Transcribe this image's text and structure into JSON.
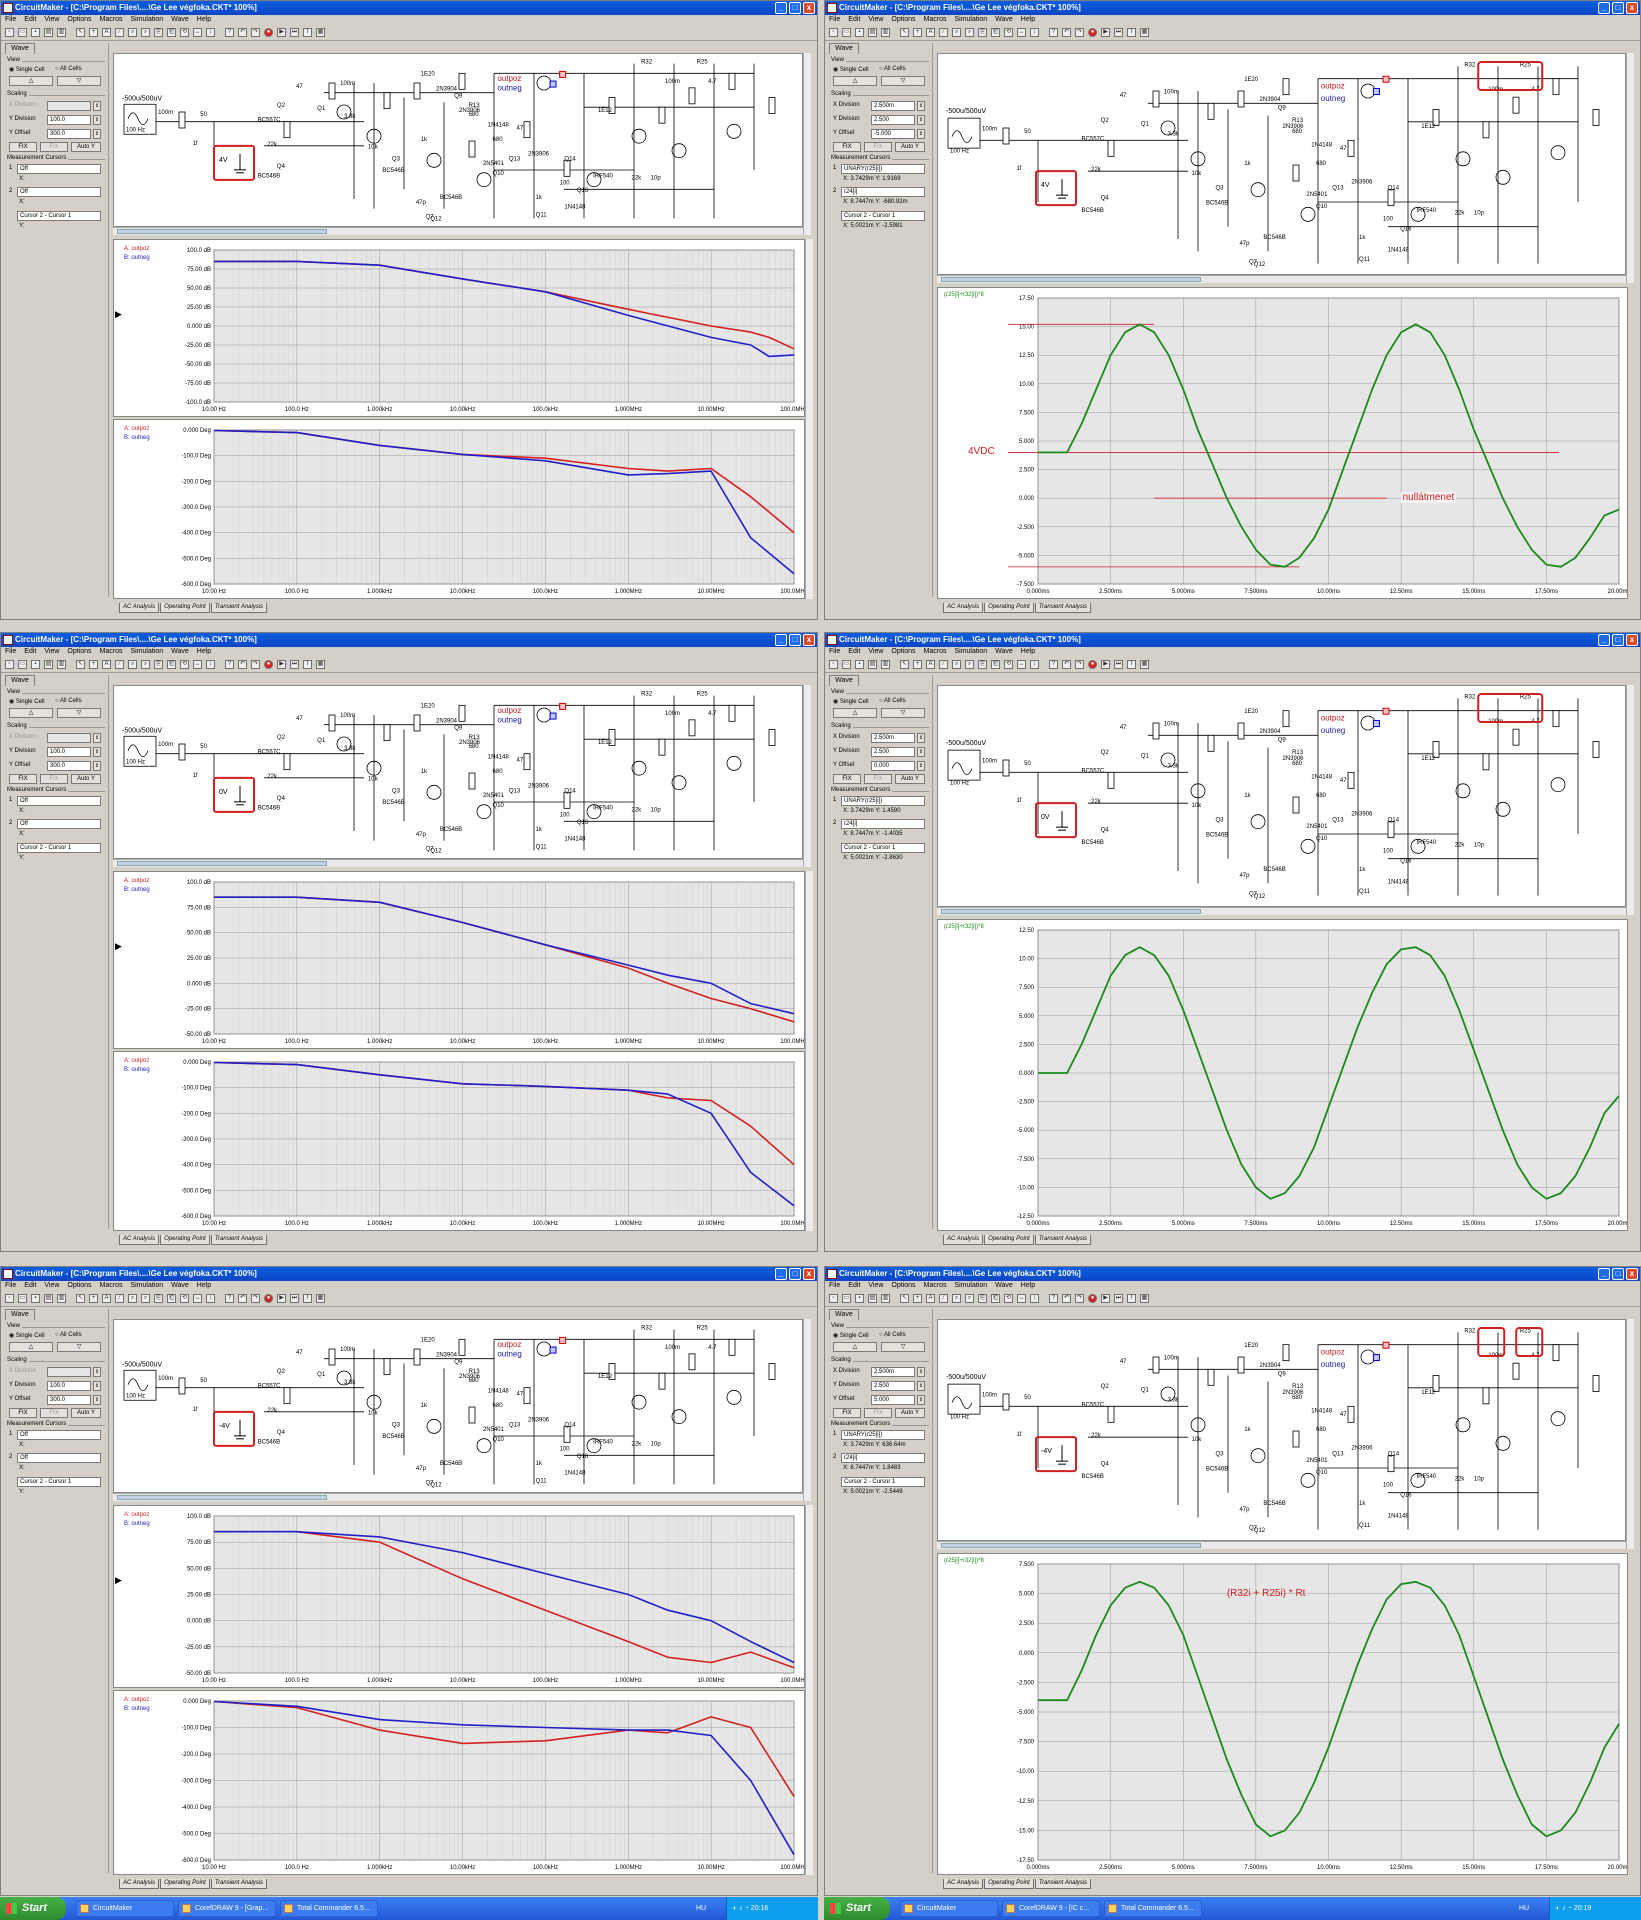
{
  "common": {
    "title": "CircuitMaker - [C:\\Program Files\\....\\Ge Lee végfoka.CKT* 100%]",
    "menu": [
      "File",
      "Edit",
      "View",
      "Options",
      "Macros",
      "Simulation",
      "Wave",
      "Help"
    ],
    "side_tab": "Wave",
    "view_label": "View",
    "single_cell": "Single Cell",
    "all_cells": "All Cells",
    "scaling_label": "Scaling",
    "x_division_label": "X Division",
    "y_division_label": "Y Division",
    "y_offset_label": "Y Offset",
    "fix_label": "FIX",
    "fix2_label": "FIX",
    "auto_y_label": "Auto Y",
    "measurement_label": "Measurement Cursors",
    "x_label": "X:",
    "y_label": "Y:",
    "cursor_diff": "Cursor 2 - Cursor 1",
    "bottom_tabs": [
      "AC Analysis",
      "Operating Point",
      "Transient Analysis"
    ],
    "source_label": "-500u/500uV",
    "source_freq": "100 Hz",
    "schematic_labels": [
      "100m",
      "50",
      "1f",
      "22k",
      "Q2",
      "47",
      "Q1",
      "BC557C",
      "Q4",
      "BC546B",
      "3.3k",
      "100m",
      "10k",
      "Q3",
      "BC546B",
      "47p",
      "1k",
      "1E20",
      "2N3904",
      "Q7",
      "BC546B",
      "Q12",
      "1N4148",
      "680",
      "2N5401",
      "Q10",
      "47",
      "Q13",
      "2N3906",
      "Q14",
      "1k",
      "Q11",
      "1N4148",
      "100",
      "Q16",
      "IRF540",
      "22k",
      "10p",
      "1E12",
      "R32",
      "R25",
      "100m",
      "4.7",
      "Q9",
      "2N3906",
      "R13",
      "680"
    ],
    "outpoz": "outpoz",
    "outneg": "outneg"
  },
  "ac_plots": {
    "mag_yticks": [
      "100.0 dB",
      "75.00 dB",
      "50.00 dB",
      "25.00 dB",
      "0.000 dB",
      "-25.00 dB",
      "-50.00 dB",
      "-75.00 dB",
      "-100.0 dB"
    ],
    "mag_yticks_short": [
      "100.0 dB",
      "75.00 dB",
      "50.00 dB",
      "25.00 dB",
      "0.000 dB",
      "-25.00 dB",
      "-50.00 dB"
    ],
    "phase_yticks": [
      "0.000 Deg",
      "-100.0 Deg",
      "-200.0 Deg",
      "-300.0 Deg",
      "-400.0 Deg",
      "-500.0 Deg",
      "-600.0 Deg"
    ],
    "xticks": [
      "10.00 Hz",
      "100.0 Hz",
      "1.000kHz",
      "10.00kHz",
      "100.0kHz",
      "1.000MHz",
      "10.00MHz",
      "100.0MHz"
    ],
    "legend_a": "A: outpoz",
    "legend_b": "B: outneg",
    "colors": {
      "a": "#d42020",
      "b": "#2020c8"
    }
  },
  "panels": [
    {
      "id": "p1",
      "ground_label": "4V",
      "x_division": "",
      "y_division": "100.0",
      "y_offset": "300.0",
      "cursor1": "Off",
      "cursor2": "Off"
    },
    {
      "id": "p3",
      "ground_label": "0V",
      "x_division": "",
      "y_division": "100.0",
      "y_offset": "300.0",
      "cursor1": "Off",
      "cursor2": "Off"
    },
    {
      "id": "p5",
      "ground_label": "-4V",
      "x_division": "",
      "y_division": "100.0",
      "y_offset": "300.0",
      "cursor1": "Off",
      "cursor2": "Off"
    },
    {
      "id": "p2",
      "ground_label": "4V",
      "x_division": "2.500m",
      "y_division": "2.500",
      "y_offset": "-5.000",
      "cursor1": "UNARY(r25[i])",
      "cursor1_xy": "X: 3.7429m  Y: 1.9169",
      "cursor2": "r24[i]",
      "cursor2_xy": "X: 8.7447m  Y: -680.92m",
      "diff_xy": "X: 5.0021m  Y: -2.5981",
      "trace_label": "(r25[i]+r32[i])*8",
      "yticks": [
        "17.50",
        "15.00",
        "12.50",
        "10.00",
        "7.500",
        "5.000",
        "2.500",
        "0.000",
        "-2.500",
        "-5.000",
        "-7.500"
      ],
      "xticks": [
        "0.000ms",
        "2.500ms",
        "5.000ms",
        "7.500ms",
        "10.00ms",
        "12.50ms",
        "15.00ms",
        "17.50ms",
        "20.00ms"
      ],
      "annot1": "4VDC",
      "annot2": "nullátmenet"
    },
    {
      "id": "p4",
      "ground_label": "0V",
      "x_division": "2.500m",
      "y_division": "2.500",
      "y_offset": "0.000",
      "cursor1": "UNARY(r25[i])",
      "cursor1_xy": "X: 3.7429m  Y: 1.4590",
      "cursor2": "r24[i]",
      "cursor2_xy": "X: 8.7447m  Y: -1.4035",
      "diff_xy": "X: 5.0021m  Y: -2.8630",
      "trace_label": "(r25[i]+r32[i])*8",
      "yticks": [
        "12.50",
        "10.00",
        "7.500",
        "5.000",
        "2.500",
        "0.000",
        "-2.500",
        "-5.000",
        "-7.500",
        "-10.00",
        "-12.50"
      ],
      "xticks": [
        "0.000ms",
        "2.500ms",
        "5.000ms",
        "7.500ms",
        "10.00ms",
        "12.50ms",
        "15.00ms",
        "17.50ms",
        "20.00ms"
      ]
    },
    {
      "id": "p6",
      "ground_label": "-4V",
      "x_division": "2.500m",
      "y_division": "2.500",
      "y_offset": "5.000",
      "cursor1": "UNARY(r25[i])",
      "cursor1_xy": "X: 3.7429m  Y: 636.64m",
      "cursor2": "r24[i]",
      "cursor2_xy": "X: 8.7447m  Y: 1.8483",
      "diff_xy": "X: 5.0021m  Y: -2.5449",
      "trace_label": "(r25[i]+r32[i])*8",
      "yticks": [
        "7.500",
        "5.000",
        "2.500",
        "0.000",
        "-2.500",
        "-5.000",
        "-7.500",
        "-10.00",
        "-12.50",
        "-15.00",
        "-17.50"
      ],
      "xticks": [
        "0.000ms",
        "2.500ms",
        "5.000ms",
        "7.500ms",
        "10.00ms",
        "12.50ms",
        "15.00ms",
        "17.50ms",
        "20.00ms"
      ],
      "annot1": "(R32i + R25i) * Rt"
    }
  ],
  "chart_data": [
    {
      "type": "line",
      "panel": "p1-magnitude",
      "xscale": "log",
      "xlim": [
        10,
        100000000
      ],
      "ylim": [
        -100,
        100
      ],
      "x": [
        10,
        100,
        1000,
        10000,
        100000,
        1000000,
        10000000,
        30000000,
        50000000,
        100000000
      ],
      "series": [
        {
          "name": "A: outpoz",
          "values": [
            85,
            85,
            80,
            62,
            45,
            22,
            0,
            -8,
            -15,
            -30
          ]
        },
        {
          "name": "B: outneg",
          "values": [
            85,
            85,
            80,
            62,
            45,
            14,
            -15,
            -25,
            -40,
            -38
          ]
        }
      ]
    },
    {
      "type": "line",
      "panel": "p1-phase",
      "xscale": "log",
      "xlim": [
        10,
        100000000
      ],
      "ylim": [
        -600,
        0
      ],
      "x": [
        10,
        100,
        1000,
        10000,
        100000,
        1000000,
        3000000,
        10000000,
        30000000,
        100000000
      ],
      "series": [
        {
          "name": "A: outpoz",
          "values": [
            -2,
            -10,
            -60,
            -95,
            -110,
            -150,
            -160,
            -150,
            -260,
            -400
          ]
        },
        {
          "name": "B: outneg",
          "values": [
            -2,
            -10,
            -60,
            -95,
            -120,
            -175,
            -170,
            -160,
            -420,
            -560
          ]
        }
      ]
    },
    {
      "type": "line",
      "panel": "p3-magnitude",
      "xscale": "log",
      "xlim": [
        10,
        100000000
      ],
      "ylim": [
        -50,
        100
      ],
      "x": [
        10,
        100,
        1000,
        10000,
        100000,
        1000000,
        3000000,
        10000000,
        30000000,
        100000000
      ],
      "series": [
        {
          "name": "A: outpoz",
          "values": [
            85,
            85,
            80,
            60,
            38,
            15,
            0,
            -15,
            -25,
            -38
          ]
        },
        {
          "name": "B: outneg",
          "values": [
            85,
            85,
            80,
            60,
            38,
            18,
            8,
            0,
            -20,
            -30
          ]
        }
      ]
    },
    {
      "type": "line",
      "panel": "p3-phase",
      "xscale": "log",
      "xlim": [
        10,
        100000000
      ],
      "ylim": [
        -600,
        0
      ],
      "x": [
        10,
        100,
        1000,
        10000,
        100000,
        1000000,
        3000000,
        10000000,
        30000000,
        100000000
      ],
      "series": [
        {
          "name": "A: outpoz",
          "values": [
            -2,
            -10,
            -50,
            -85,
            -95,
            -110,
            -140,
            -150,
            -250,
            -400
          ]
        },
        {
          "name": "B: outneg",
          "values": [
            -2,
            -10,
            -50,
            -85,
            -95,
            -110,
            -125,
            -200,
            -430,
            -560
          ]
        }
      ]
    },
    {
      "type": "line",
      "panel": "p5-magnitude",
      "xscale": "log",
      "xlim": [
        10,
        100000000
      ],
      "ylim": [
        -50,
        100
      ],
      "x": [
        10,
        100,
        1000,
        10000,
        100000,
        1000000,
        3000000,
        10000000,
        30000000,
        100000000
      ],
      "series": [
        {
          "name": "A: outpoz",
          "values": [
            85,
            85,
            75,
            40,
            10,
            -20,
            -35,
            -40,
            -30,
            -45
          ]
        },
        {
          "name": "B: outneg",
          "values": [
            85,
            85,
            80,
            65,
            45,
            25,
            10,
            0,
            -20,
            -40
          ]
        }
      ]
    },
    {
      "type": "line",
      "panel": "p5-phase",
      "xscale": "log",
      "xlim": [
        10,
        100000000
      ],
      "ylim": [
        -600,
        0
      ],
      "x": [
        10,
        100,
        1000,
        10000,
        100000,
        1000000,
        3000000,
        10000000,
        30000000,
        100000000
      ],
      "series": [
        {
          "name": "A: outpoz",
          "values": [
            -2,
            -25,
            -110,
            -160,
            -150,
            -110,
            -120,
            -60,
            -100,
            -360
          ]
        },
        {
          "name": "B: outneg",
          "values": [
            -2,
            -20,
            -70,
            -90,
            -100,
            -110,
            -110,
            -130,
            -300,
            -580
          ]
        }
      ]
    },
    {
      "type": "line",
      "panel": "p2-transient",
      "xlim": [
        0,
        20
      ],
      "ylim": [
        -7.5,
        17.5
      ],
      "x": [
        0,
        0.5,
        1,
        1.5,
        2,
        2.5,
        3,
        3.5,
        4,
        4.5,
        5,
        5.5,
        6,
        6.5,
        7,
        7.5,
        8,
        8.5,
        9,
        9.5,
        10,
        10.5,
        11,
        11.5,
        12,
        12.5,
        13,
        13.5,
        14,
        14.5,
        15,
        15.5,
        16,
        16.5,
        17,
        17.5,
        18,
        18.5,
        19,
        19.5,
        20
      ],
      "series": [
        {
          "name": "(r25[i]+r32[i])*8",
          "values": [
            4,
            4,
            4,
            6.5,
            9.5,
            12.5,
            14.5,
            15.2,
            14.5,
            12.5,
            9.5,
            6,
            3,
            0,
            -2.5,
            -4.5,
            -5.8,
            -6,
            -5.2,
            -3.5,
            -1,
            2.5,
            6,
            9.5,
            12.5,
            14.5,
            15.2,
            14.5,
            12.5,
            9.5,
            6,
            3,
            0,
            -2.5,
            -4.5,
            -5.8,
            -6,
            -5.2,
            -3.5,
            -1.5,
            -1
          ]
        }
      ]
    },
    {
      "type": "line",
      "panel": "p4-transient",
      "xlim": [
        0,
        20
      ],
      "ylim": [
        -12.5,
        12.5
      ],
      "x": [
        0,
        0.5,
        1,
        1.5,
        2,
        2.5,
        3,
        3.5,
        4,
        4.5,
        5,
        5.5,
        6,
        6.5,
        7,
        7.5,
        8,
        8.5,
        9,
        9.5,
        10,
        10.5,
        11,
        11.5,
        12,
        12.5,
        13,
        13.5,
        14,
        14.5,
        15,
        15.5,
        16,
        16.5,
        17,
        17.5,
        18,
        18.5,
        19,
        19.5,
        20
      ],
      "series": [
        {
          "name": "(r25[i]+r32[i])*8",
          "values": [
            0,
            0,
            0,
            2.5,
            5.5,
            8.5,
            10.3,
            11,
            10.3,
            8.5,
            5.5,
            2,
            -1.5,
            -5,
            -8,
            -10,
            -11,
            -10.5,
            -9,
            -6.5,
            -3,
            0.5,
            4,
            7,
            9.5,
            10.8,
            11,
            10.3,
            8.5,
            5.5,
            2,
            -1.5,
            -5,
            -8,
            -10,
            -11,
            -10.5,
            -9,
            -6.5,
            -3.5,
            -2
          ]
        }
      ]
    },
    {
      "type": "line",
      "panel": "p6-transient",
      "xlim": [
        0,
        20
      ],
      "ylim": [
        -17.5,
        7.5
      ],
      "x": [
        0,
        0.5,
        1,
        1.5,
        2,
        2.5,
        3,
        3.5,
        4,
        4.5,
        5,
        5.5,
        6,
        6.5,
        7,
        7.5,
        8,
        8.5,
        9,
        9.5,
        10,
        10.5,
        11,
        11.5,
        12,
        12.5,
        13,
        13.5,
        14,
        14.5,
        15,
        15.5,
        16,
        16.5,
        17,
        17.5,
        18,
        18.5,
        19,
        19.5,
        20
      ],
      "series": [
        {
          "name": "(r25[i]+r32[i])*8",
          "values": [
            -4,
            -4,
            -4,
            -1.5,
            1.5,
            4,
            5.5,
            6,
            5.5,
            4,
            1.5,
            -2,
            -5.5,
            -9,
            -12,
            -14.5,
            -15.5,
            -15,
            -13.5,
            -11,
            -8,
            -4.5,
            -1,
            2,
            4.5,
            5.8,
            6,
            5.5,
            4,
            1.5,
            -2,
            -5.5,
            -9,
            -12,
            -14.5,
            -15.5,
            -15,
            -13.5,
            -11,
            -8,
            -6
          ]
        }
      ]
    }
  ],
  "taskbar": {
    "start": "Start",
    "left_tasks": [
      "CircuitMaker",
      "CorelDRAW 9 - [Grap...",
      "Total Commander 6.5..."
    ],
    "right_tasks": [
      "CircuitMaker",
      "CorelDRAW 9 - [IC c...",
      "Total Commander 6.5..."
    ],
    "lang": "HU",
    "clock_left": "20:16",
    "clock_right": "20:19"
  }
}
